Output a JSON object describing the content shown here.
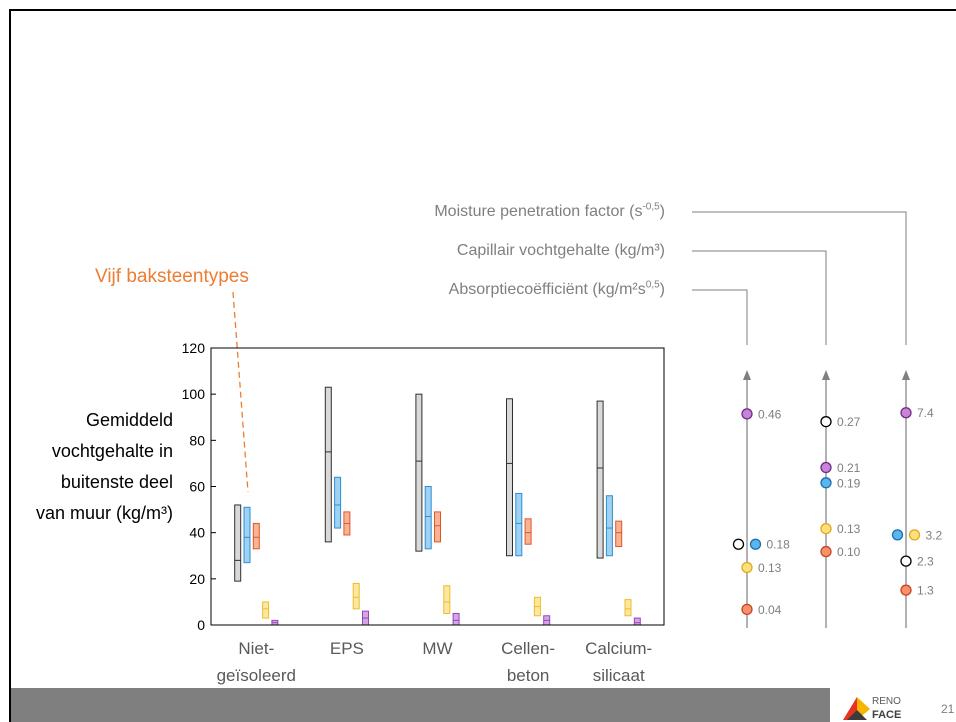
{
  "slide": {
    "annotation": "Vijf baksteentypes",
    "page_number": "21",
    "logo": {
      "line1": "RENO",
      "line2": "FACE"
    },
    "colors": {
      "annotation": "#ed7d31",
      "footer": "#7f7f7f",
      "text_grey": "#7f7f7f"
    }
  },
  "chart_data": [
    {
      "type": "bar",
      "categories": [
        [
          "Niet-",
          "geïsoleerd"
        ],
        [
          "EPS"
        ],
        [
          "MW"
        ],
        [
          "Cellen-",
          "beton"
        ],
        [
          "Calcium-",
          "silicaat"
        ]
      ],
      "ylabel": [
        "Gemiddeld",
        "vochtgehalte in",
        "buitenste deel",
        "van muur (kg/m³)"
      ],
      "ylim": [
        0,
        120
      ],
      "yticks": [
        0,
        20,
        40,
        60,
        80,
        100,
        120
      ],
      "grid": false,
      "series": [
        {
          "color": "#303030",
          "fill": "#d9d9d9",
          "min": [
            19,
            36,
            32,
            30,
            29
          ],
          "median": [
            28,
            75,
            71,
            70,
            68
          ],
          "max": [
            52,
            103,
            100,
            98,
            97
          ]
        },
        {
          "color": "#2e8fd3",
          "fill": "#9fd1f2",
          "min": [
            27,
            42,
            33,
            30,
            30
          ],
          "median": [
            38,
            52,
            47,
            44,
            42
          ],
          "max": [
            51,
            64,
            60,
            57,
            56
          ]
        },
        {
          "color": "#e2552a",
          "fill": "#f7b495",
          "min": [
            33,
            39,
            36,
            35,
            34
          ],
          "median": [
            38,
            44,
            43,
            40,
            40
          ],
          "max": [
            44,
            49,
            49,
            46,
            45
          ]
        },
        {
          "color": "#eebd2b",
          "fill": "#fde7a1",
          "min": [
            3,
            7,
            5,
            4,
            4
          ],
          "median": [
            7,
            12,
            10,
            8,
            7
          ],
          "max": [
            10,
            18,
            17,
            12,
            11
          ]
        },
        {
          "color": "#9448b6",
          "fill": "#d6a3e6",
          "min": [
            0,
            0,
            0,
            0,
            0
          ],
          "median": [
            1,
            3,
            2,
            2,
            1
          ],
          "max": [
            2,
            6,
            5,
            4,
            3
          ]
        }
      ]
    },
    {
      "type": "scatter",
      "axes": [
        {
          "title": {
            "text": "Absorptiecoëfficiënt (kg/m²s",
            "sup": "0,5",
            "suffix": ")"
          },
          "ylim": [
            0,
            0.55
          ],
          "points": [
            {
              "value": 0.46,
              "label": "0.46",
              "colors": [
                "purple"
              ]
            },
            {
              "value": 0.18,
              "label": "0.18",
              "colors": [
                "black",
                "blue"
              ]
            },
            {
              "value": 0.13,
              "label": "0.13",
              "colors": [
                "yellow"
              ]
            },
            {
              "value": 0.04,
              "label": "0.04",
              "colors": [
                "orange"
              ]
            }
          ]
        },
        {
          "title": {
            "text": "Capillair vochtgehalte (kg/m³)"
          },
          "ylim": [
            0,
            0.335
          ],
          "points": [
            {
              "value": 0.27,
              "label": "0.27",
              "colors": [
                "black"
              ]
            },
            {
              "value": 0.21,
              "label": "0.21",
              "colors": [
                "purple"
              ]
            },
            {
              "value": 0.19,
              "label": "0.19",
              "colors": [
                "blue"
              ]
            },
            {
              "value": 0.13,
              "label": "0.13",
              "colors": [
                "yellow"
              ]
            },
            {
              "value": 0.1,
              "label": "0.10",
              "colors": [
                "orange"
              ]
            }
          ]
        },
        {
          "title": {
            "text": "Moisture penetration factor (s",
            "sup": "-0,5",
            "suffix": ")"
          },
          "ylim": [
            0,
            8.8
          ],
          "points": [
            {
              "value": 7.4,
              "label": "7.4",
              "colors": [
                "purple"
              ]
            },
            {
              "value": 3.2,
              "label": "3.2",
              "colors": [
                "blue",
                "yellow"
              ]
            },
            {
              "value": 2.3,
              "label": "2.3",
              "colors": [
                "black"
              ]
            },
            {
              "value": 1.3,
              "label": "1.3",
              "colors": [
                "orange"
              ]
            }
          ]
        }
      ],
      "marker_colors": {
        "black": {
          "fill": "#ffffff",
          "stroke": "#000000"
        },
        "blue": {
          "fill": "#5bb5ee",
          "stroke": "#1b6fae"
        },
        "yellow": {
          "fill": "#ffe07a",
          "stroke": "#e0a820"
        },
        "orange": {
          "fill": "#f7916c",
          "stroke": "#c8451f"
        },
        "purple": {
          "fill": "#c784da",
          "stroke": "#6e2d85"
        }
      }
    }
  ]
}
